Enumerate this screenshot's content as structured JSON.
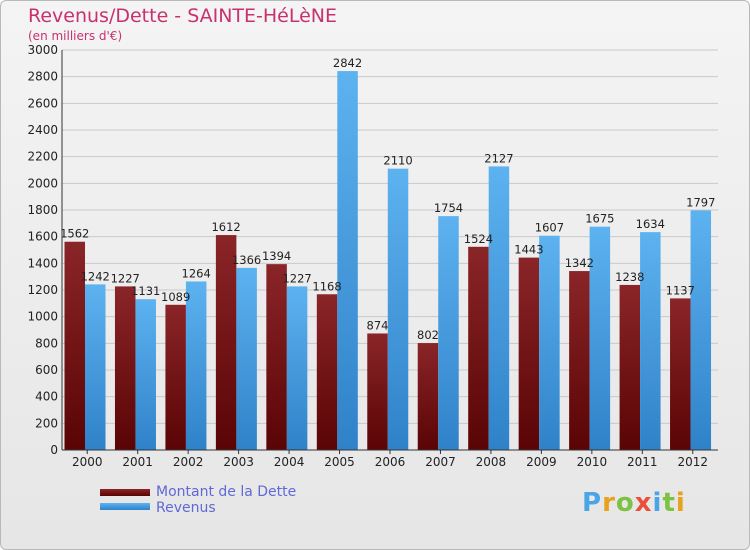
{
  "title": "Revenus/Dette - SAINTE-HéLèNE",
  "subtitle": "(en milliers d'€)",
  "logo_text": "Proxiti",
  "colors": {
    "dette": "#7a1316",
    "revenus": "#4aa4e6",
    "title": "#c8316e",
    "legend_text": "#6069d6"
  },
  "chart_data": {
    "type": "bar",
    "title": "Revenus/Dette - SAINTE-HéLèNE",
    "ylabel": "(en milliers d'€)",
    "xlabel": "",
    "ylim": [
      0,
      3000
    ],
    "yticks": [
      0,
      200,
      400,
      600,
      800,
      1000,
      1200,
      1400,
      1600,
      1800,
      2000,
      2200,
      2400,
      2600,
      2800,
      3000
    ],
    "categories": [
      "2000",
      "2001",
      "2002",
      "2003",
      "2004",
      "2005",
      "2006",
      "2007",
      "2008",
      "2009",
      "2010",
      "2011",
      "2012"
    ],
    "series": [
      {
        "name": "Montant de la Dette",
        "values": [
          1562,
          1227,
          1089,
          1612,
          1394,
          1168,
          874,
          802,
          1524,
          1443,
          1342,
          1238,
          1137
        ]
      },
      {
        "name": "Revenus",
        "values": [
          1242,
          1131,
          1264,
          1366,
          1227,
          2842,
          2110,
          1754,
          2127,
          1607,
          1675,
          1634,
          1797
        ]
      }
    ],
    "legend_position": "bottom-left"
  }
}
